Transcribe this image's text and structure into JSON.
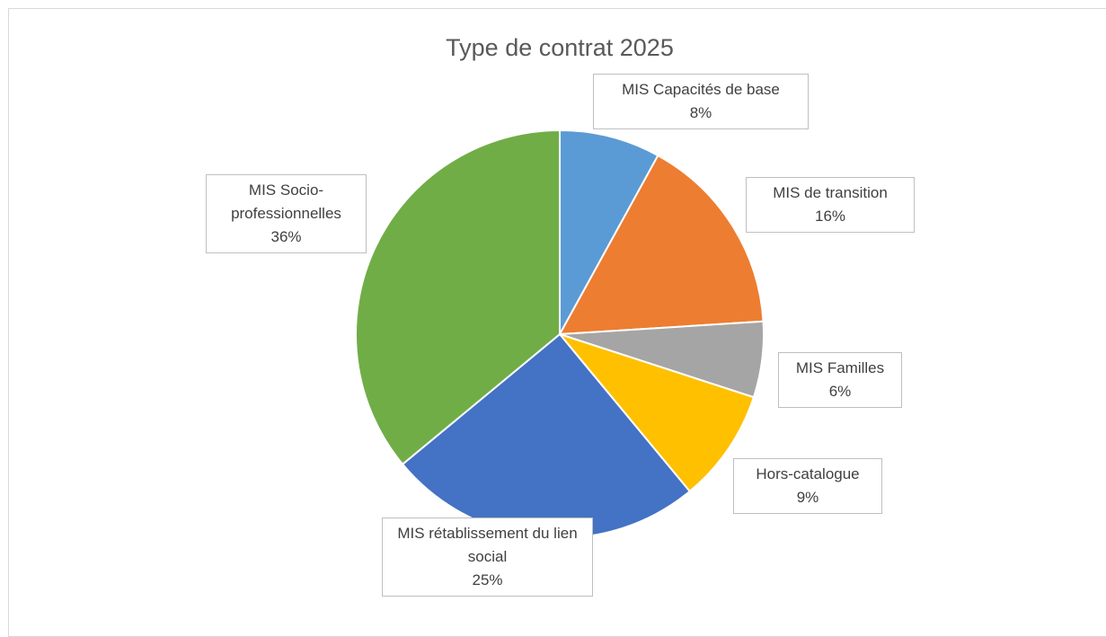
{
  "chart_data": {
    "type": "pie",
    "title": "Type de contrat 2025",
    "categories": [
      "MIS Capacités de base",
      "MIS de transition",
      "MIS Familles",
      "Hors-catalogue",
      "MIS rétablissement du lien social",
      "MIS Socio-professionnelles"
    ],
    "values": [
      8,
      16,
      6,
      9,
      25,
      36
    ],
    "value_labels": [
      "8%",
      "16%",
      "6%",
      "9%",
      "25%",
      "36%"
    ],
    "colors": [
      "#5b9bd5",
      "#ed7d31",
      "#a5a5a5",
      "#ffc000",
      "#4472c4",
      "#70ad47"
    ]
  }
}
